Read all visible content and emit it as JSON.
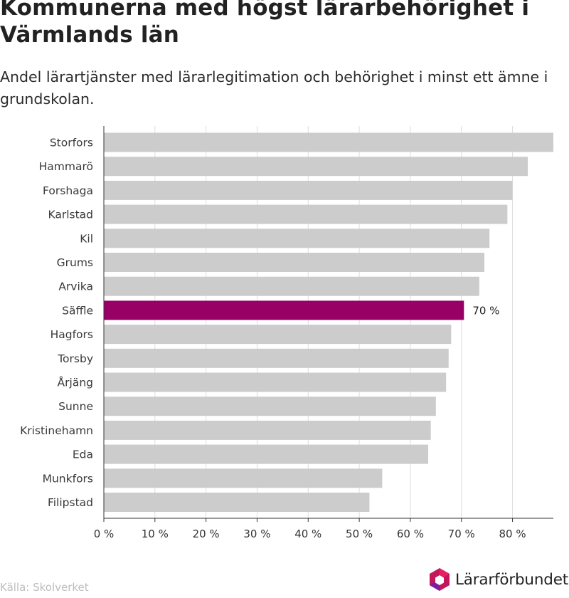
{
  "header": {
    "title": "Kommunerna med högst lärarbehörighet i Värmlands län",
    "subtitle": "Andel lärartjänster med lärarlegitimation och behörighet i minst ett ämne i grundskolan."
  },
  "footer": {
    "source": "Källa: Skolverket",
    "brand": "Lärarförbundet"
  },
  "colors": {
    "bar_default": "#cccccc",
    "bar_highlight": "#990066",
    "grid": "#dddddd",
    "axis": "#333333",
    "logo_pink": "#c2185b",
    "logo_purple": "#7b1fa2"
  },
  "icons": {
    "logo": "lararforbundet-hexagon-logo-icon"
  },
  "chart_data": {
    "type": "bar",
    "orientation": "horizontal",
    "categories": [
      "Storfors",
      "Hammarö",
      "Forshaga",
      "Karlstad",
      "Kil",
      "Grums",
      "Arvika",
      "Säffle",
      "Hagfors",
      "Torsby",
      "Årjäng",
      "Sunne",
      "Kristinehamn",
      "Eda",
      "Munkfors",
      "Filipstad"
    ],
    "values": [
      88,
      83,
      80,
      79,
      75.5,
      74.5,
      73.5,
      70.5,
      68,
      67.5,
      67,
      65,
      64,
      63.5,
      54.5,
      52
    ],
    "highlight_index": 7,
    "highlight_label": "70 %",
    "xlim": [
      0,
      88
    ],
    "ticks": [
      0,
      10,
      20,
      30,
      40,
      50,
      60,
      70,
      80
    ],
    "tick_labels": [
      "0 %",
      "10 %",
      "20 %",
      "30 %",
      "40 %",
      "50 %",
      "60 %",
      "70 %",
      "80 %"
    ],
    "grid": true
  }
}
